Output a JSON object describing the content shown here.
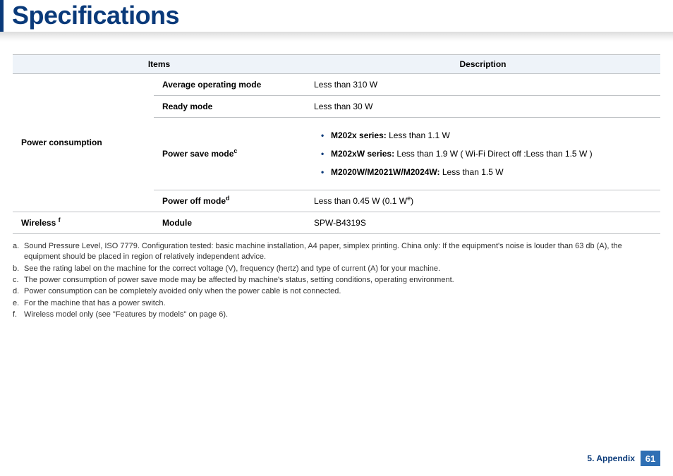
{
  "title": "Specifications",
  "table": {
    "header_items": "Items",
    "header_description": "Description",
    "power_consumption_label": "Power consumption",
    "avg_mode_label": "Average operating mode",
    "avg_mode_value": "Less than 310 W",
    "ready_mode_label": "Ready mode",
    "ready_mode_value": "Less than 30 W",
    "psave_label": "Power save mode",
    "psave_ref": "c",
    "psave_items": {
      "a_label": "M202x series:",
      "a_value": " Less than 1.1 W",
      "b_label": "M202xW series:",
      "b_value": " Less than 1.9 W ( Wi-Fi Direct off :Less than 1.5 W )",
      "c_label": "M2020W/M2021W/M2024W:",
      "c_value": " Less than 1.5 W"
    },
    "poff_label": "Power off mode",
    "poff_ref": "d",
    "poff_value_pre": "Less than 0.45 W (0.1 W",
    "poff_value_ref": "e",
    "poff_value_post": ")",
    "wireless_label": "Wireless ",
    "wireless_ref": "f",
    "module_label": "Module",
    "module_value": "SPW-B4319S"
  },
  "footnotes": {
    "a_mark": "a.",
    "a_text": "Sound Pressure Level, ISO 7779. Configuration tested: basic machine installation, A4 paper, simplex printing. China only: If the equipment's noise is louder than 63 db (A), the equipment should be placed in region of relatively independent advice.",
    "b_mark": "b.",
    "b_text": "See the rating label on the machine for the correct voltage (V), frequency (hertz) and type of current (A) for your machine.",
    "c_mark": "c.",
    "c_text": "The power consumption of power save mode may be affected by machine's status, setting conditions, operating environment.",
    "d_mark": "d.",
    "d_text": "Power consumption can be completely avoided only when the power cable is not connected.",
    "e_mark": "e.",
    "e_text": "For the machine that has a power switch.",
    "f_mark": "f.",
    "f_text": "Wireless model only (see \"Features by models\" on page 6)."
  },
  "footer": {
    "chapter": "5. Appendix",
    "page": "61"
  }
}
